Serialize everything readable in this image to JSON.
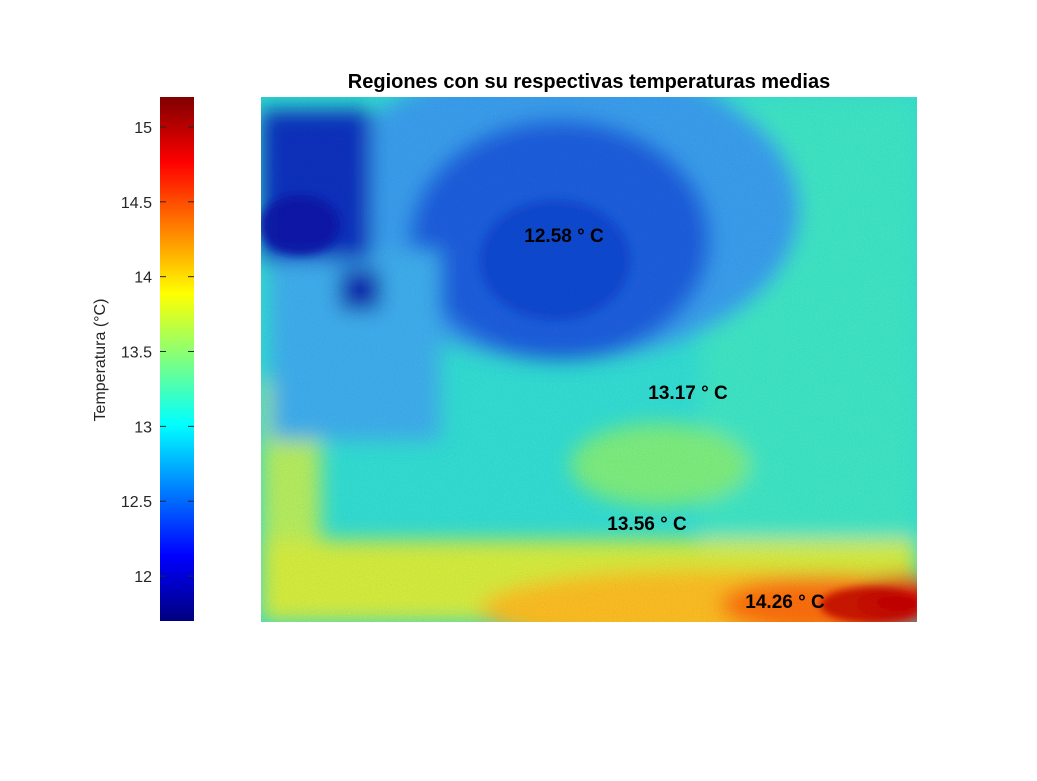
{
  "chart_data": {
    "type": "heatmap",
    "title": "Regiones con su respectivas temperaturas medias",
    "colormap": "jet",
    "colormap_stops": [
      "#00007f",
      "#0000ff",
      "#007fff",
      "#00ffff",
      "#7fff7f",
      "#ffff00",
      "#ff7f00",
      "#ff0000",
      "#7f0000"
    ],
    "colorbar": {
      "label": "Temperatura (°C)",
      "range": [
        11.7,
        15.2
      ],
      "ticks": [
        {
          "value": 12,
          "label": "12"
        },
        {
          "value": 12.5,
          "label": "12.5"
        },
        {
          "value": 13,
          "label": "13"
        },
        {
          "value": 13.5,
          "label": "13.5"
        },
        {
          "value": 14,
          "label": "14"
        },
        {
          "value": 14.5,
          "label": "14.5"
        },
        {
          "value": 15,
          "label": "15"
        }
      ]
    },
    "regions": [
      {
        "name": "region-1",
        "mean_temp": 12.58,
        "label": "12.58 ° C"
      },
      {
        "name": "region-2",
        "mean_temp": 13.17,
        "label": "13.17 ° C"
      },
      {
        "name": "region-3",
        "mean_temp": 13.56,
        "label": "13.56 ° C"
      },
      {
        "name": "region-4",
        "mean_temp": 14.26,
        "label": "14.26 ° C"
      }
    ]
  }
}
